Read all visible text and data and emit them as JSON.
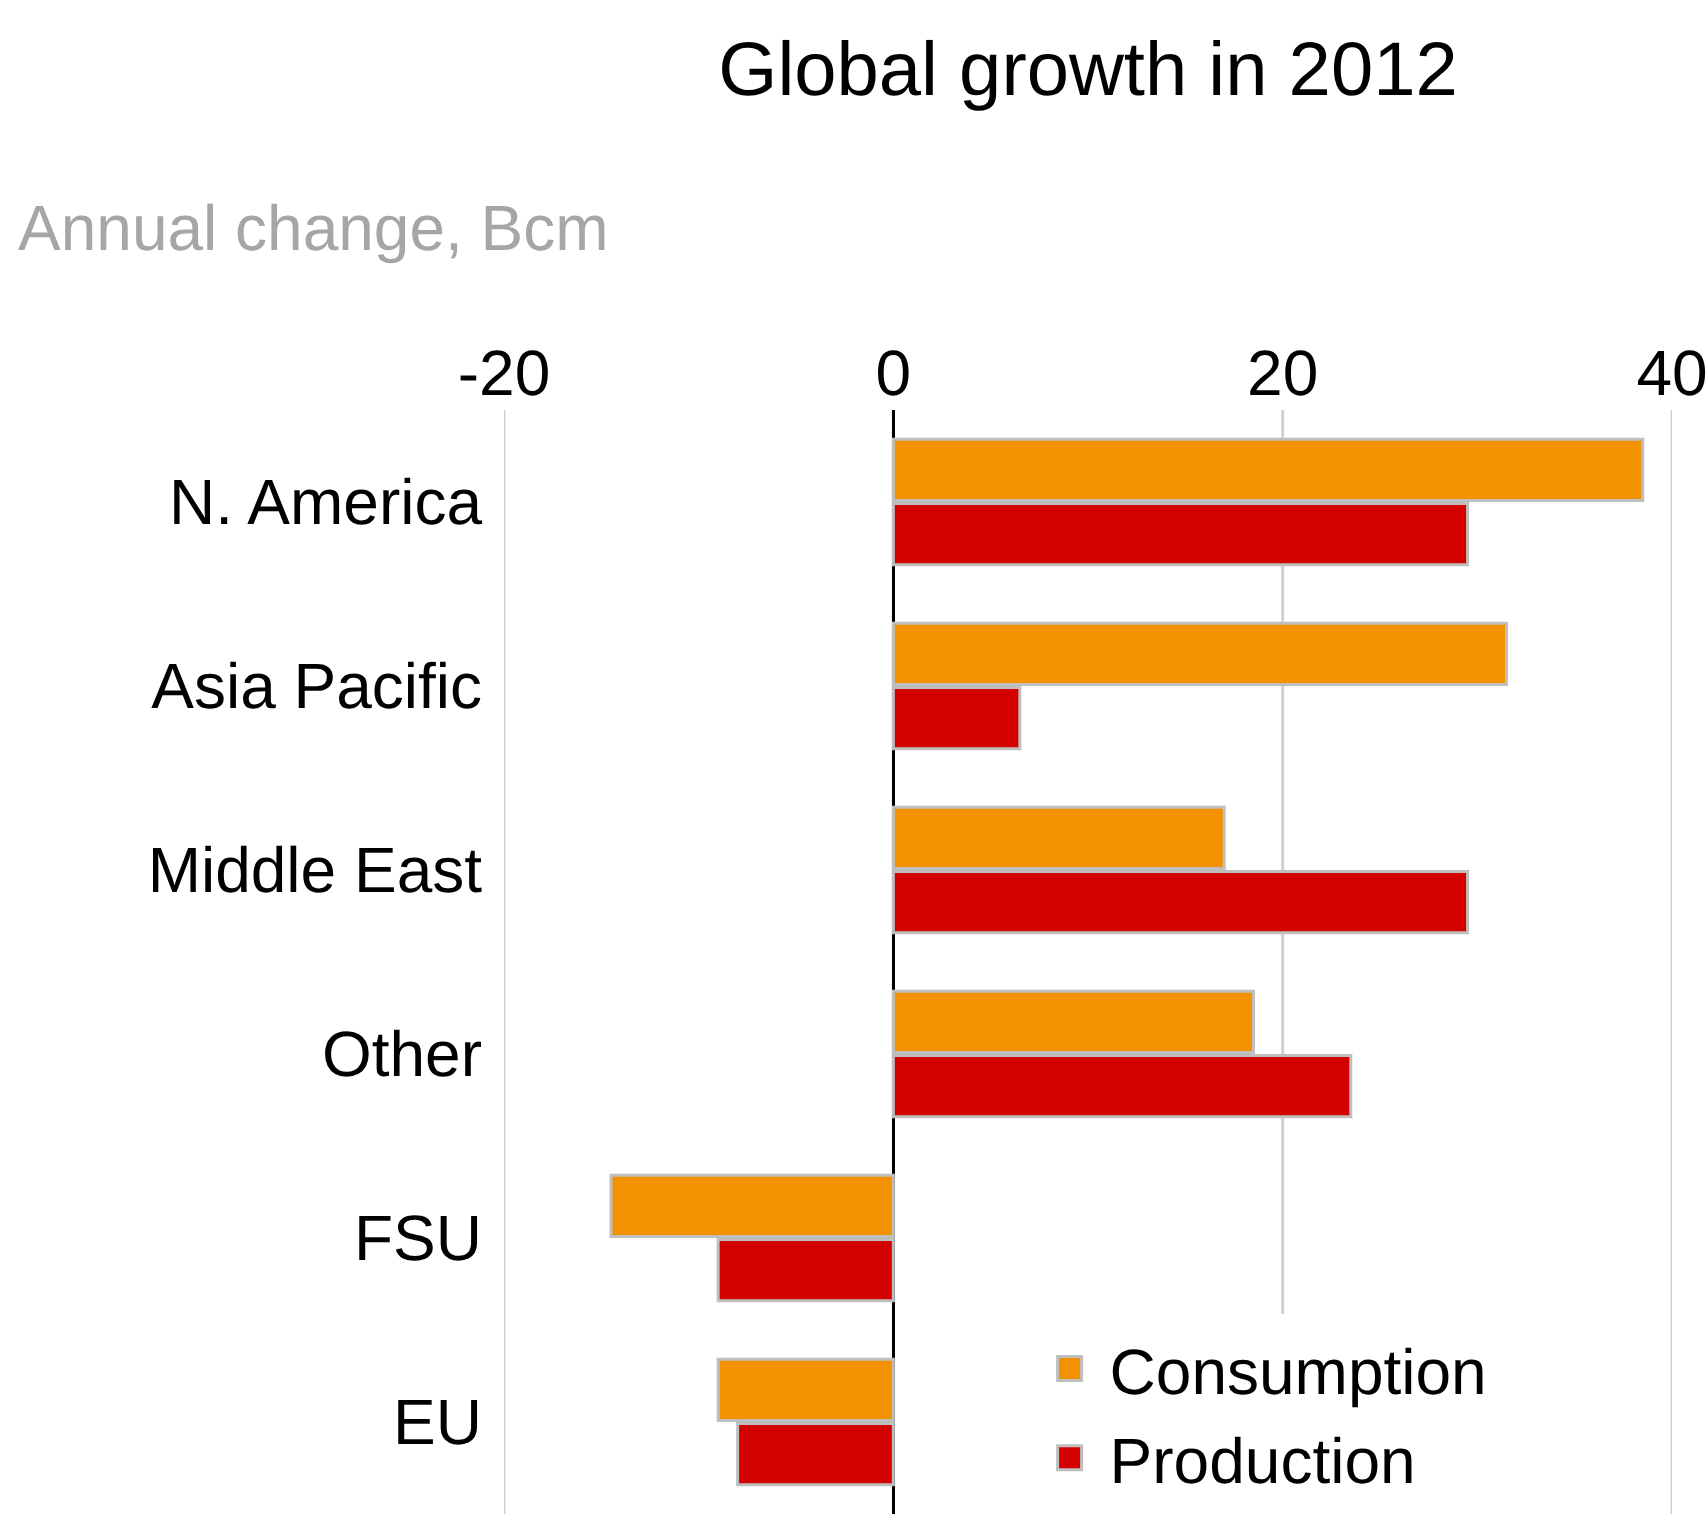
{
  "chart_data": {
    "type": "bar",
    "orientation": "horizontal",
    "title": "Global growth in 2012",
    "subtitle": "Annual change, Bcm",
    "categories": [
      "N. America",
      "Asia Pacific",
      "Middle East",
      "Other",
      "FSU",
      "EU"
    ],
    "series": [
      {
        "name": "Consumption",
        "color": "#f39200",
        "values": [
          38.5,
          31.5,
          17,
          18.5,
          -14.5,
          -9
        ]
      },
      {
        "name": "Production",
        "color": "#d40000",
        "values": [
          29.5,
          6.5,
          29.5,
          23.5,
          -9,
          -8
        ]
      }
    ],
    "xlim": [
      -20,
      40
    ],
    "xticks": [
      -20,
      0,
      20,
      40
    ],
    "grid": "x",
    "legend": "bottom right"
  }
}
